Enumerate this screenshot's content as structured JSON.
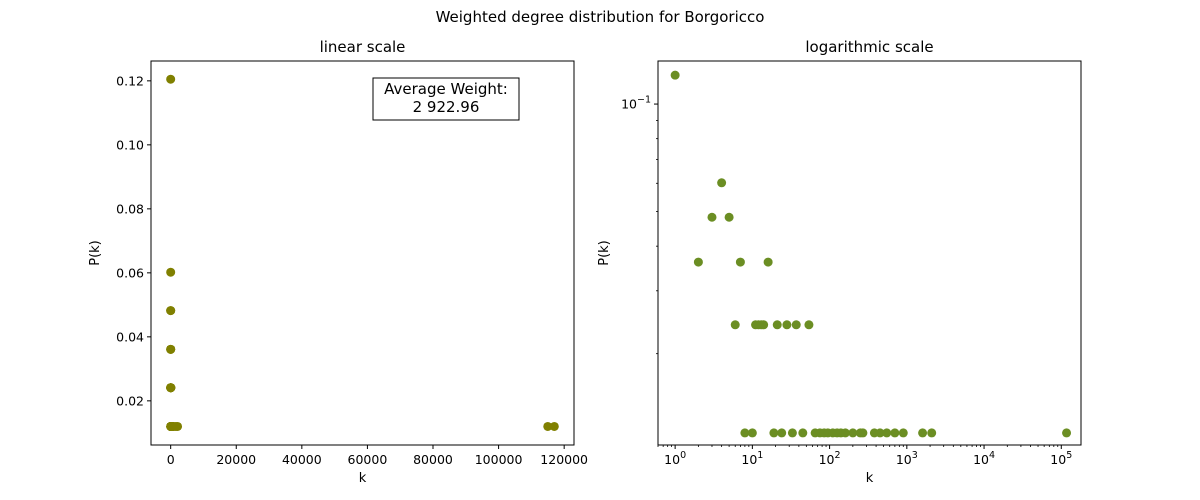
{
  "figure": {
    "suptitle": "Weighted degree distribution for Borgoricco"
  },
  "chart_data": [
    {
      "type": "scatter",
      "title": "linear scale",
      "xlabel": "k",
      "ylabel": "P(k)",
      "xscale": "linear",
      "yscale": "linear",
      "xlim": [
        -6000,
        123000
      ],
      "ylim": [
        0.0062,
        0.1262
      ],
      "xticks": [
        0,
        20000,
        40000,
        60000,
        80000,
        100000,
        120000
      ],
      "xtick_labels": [
        "0",
        "20000",
        "40000",
        "60000",
        "80000",
        "100000",
        "120000"
      ],
      "yticks": [
        0.02,
        0.04,
        0.06,
        0.08,
        0.1,
        0.12
      ],
      "ytick_labels": [
        "0.02",
        "0.04",
        "0.06",
        "0.08",
        "0.10",
        "0.12"
      ],
      "grid": false,
      "marker_color": "#808000",
      "annotation": {
        "line1": "Average Weight:",
        "line2": "2 922.96"
      },
      "x": [
        1,
        2,
        3,
        4,
        5,
        6,
        7,
        8,
        10,
        11,
        12,
        13,
        14,
        16,
        19,
        21,
        24,
        28,
        33,
        37,
        45,
        54,
        65,
        75,
        85,
        95,
        110,
        125,
        140,
        160,
        200,
        250,
        270,
        380,
        450,
        550,
        700,
        900,
        1600,
        2100,
        115000,
        117000
      ],
      "y": [
        0.1205,
        0.0361,
        0.0482,
        0.0602,
        0.0482,
        0.0241,
        0.0361,
        0.012,
        0.012,
        0.0241,
        0.0241,
        0.0241,
        0.0241,
        0.0361,
        0.012,
        0.0241,
        0.012,
        0.0241,
        0.012,
        0.0241,
        0.012,
        0.0241,
        0.012,
        0.012,
        0.012,
        0.012,
        0.012,
        0.012,
        0.012,
        0.012,
        0.012,
        0.012,
        0.012,
        0.012,
        0.012,
        0.012,
        0.012,
        0.012,
        0.012,
        0.012,
        0.012,
        0.012
      ]
    },
    {
      "type": "scatter",
      "title": "logarithmic scale",
      "xlabel": "k",
      "ylabel": "P(k)",
      "xscale": "log",
      "yscale": "log",
      "xlim": [
        0.6,
        180000
      ],
      "ylim": [
        0.0111,
        0.132
      ],
      "xticks": [
        1,
        10,
        100,
        1000,
        10000,
        100000
      ],
      "xtick_labels": [
        {
          "base": "10",
          "exp": "0"
        },
        {
          "base": "10",
          "exp": "1"
        },
        {
          "base": "10",
          "exp": "2"
        },
        {
          "base": "10",
          "exp": "3"
        },
        {
          "base": "10",
          "exp": "4"
        },
        {
          "base": "10",
          "exp": "5"
        }
      ],
      "yticks": [
        0.1
      ],
      "ytick_labels": [
        {
          "base": "10",
          "exp": "−1"
        }
      ],
      "grid": false,
      "marker_color": "#6b8e23",
      "x": [
        1,
        2,
        3,
        4,
        5,
        6,
        7,
        8,
        10,
        11,
        12,
        13,
        14,
        16,
        19,
        21,
        24,
        28,
        33,
        37,
        45,
        54,
        65,
        75,
        85,
        95,
        110,
        125,
        140,
        160,
        200,
        250,
        270,
        380,
        450,
        550,
        700,
        900,
        1600,
        2100,
        117000
      ],
      "y": [
        0.1205,
        0.0361,
        0.0482,
        0.0602,
        0.0482,
        0.0241,
        0.0361,
        0.012,
        0.012,
        0.0241,
        0.0241,
        0.0241,
        0.0241,
        0.0361,
        0.012,
        0.0241,
        0.012,
        0.0241,
        0.012,
        0.0241,
        0.012,
        0.0241,
        0.012,
        0.012,
        0.012,
        0.012,
        0.012,
        0.012,
        0.012,
        0.012,
        0.012,
        0.012,
        0.012,
        0.012,
        0.012,
        0.012,
        0.012,
        0.012,
        0.012,
        0.012,
        0.012
      ]
    }
  ]
}
